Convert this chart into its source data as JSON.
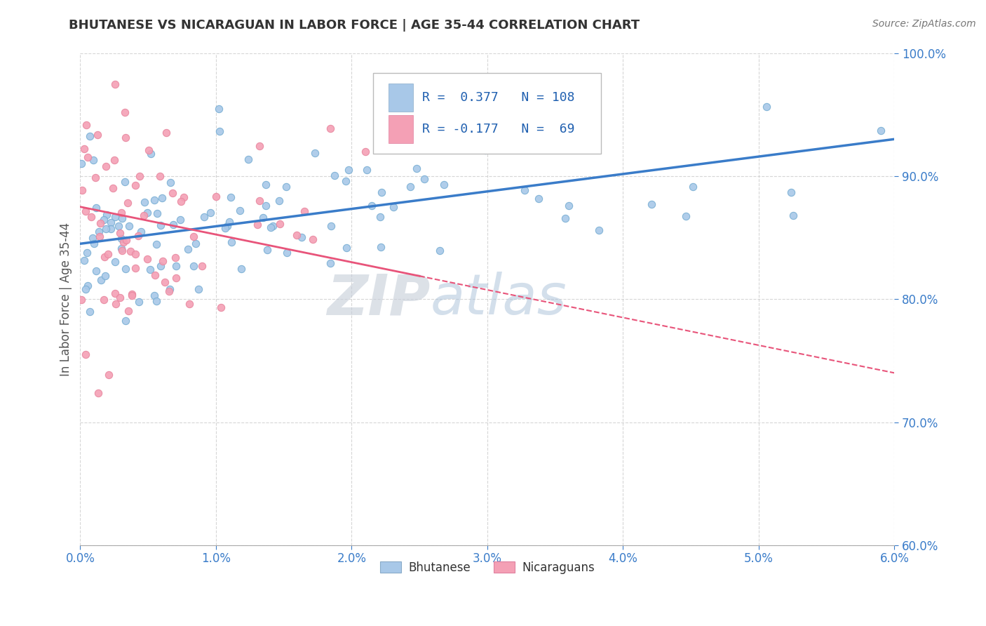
{
  "title": "BHUTANESE VS NICARAGUAN IN LABOR FORCE | AGE 35-44 CORRELATION CHART",
  "source_text": "Source: ZipAtlas.com",
  "ylabel": "In Labor Force | Age 35-44",
  "xlim": [
    0.0,
    6.0
  ],
  "ylim": [
    60.0,
    100.0
  ],
  "x_ticks": [
    0.0,
    1.0,
    2.0,
    3.0,
    4.0,
    5.0,
    6.0
  ],
  "y_ticks": [
    60.0,
    70.0,
    80.0,
    90.0,
    100.0
  ],
  "blue_line_color": "#3a7cc9",
  "pink_line_color": "#e8547a",
  "blue_scatter_color": "#a8c8e8",
  "pink_scatter_color": "#f4a0b5",
  "watermark_zip": "ZIP",
  "watermark_atlas": "atlas",
  "watermark_color_zip": "#c8d4e0",
  "watermark_color_atlas": "#b0c8e0",
  "blue_R": 0.377,
  "blue_N": 108,
  "pink_R": -0.177,
  "pink_N": 69,
  "blue_line_x0": 0.0,
  "blue_line_y0": 84.5,
  "blue_line_x1": 6.0,
  "blue_line_y1": 93.0,
  "pink_line_x0": 0.0,
  "pink_line_y0": 87.5,
  "pink_line_x1": 6.0,
  "pink_line_y1": 74.0,
  "pink_solid_end_x": 2.5,
  "seed_blue": 42,
  "seed_pink": 7
}
